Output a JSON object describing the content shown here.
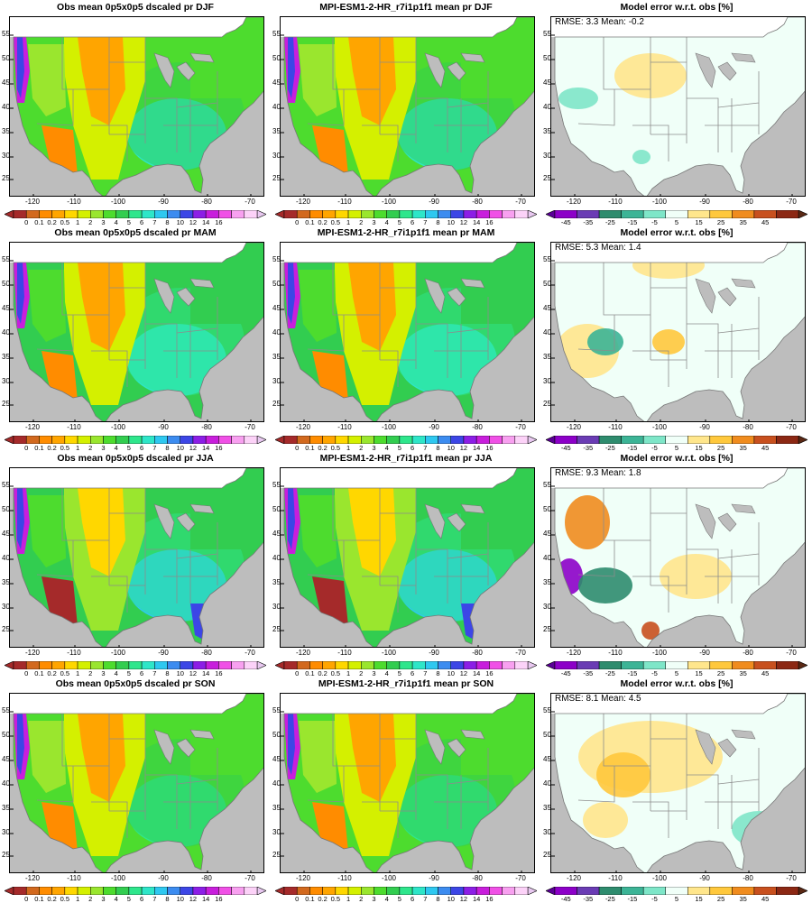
{
  "panels": [
    {
      "title": "Obs mean 0p5x0p5 dscaled pr DJF",
      "kind": "obs",
      "season": "DJF",
      "stats": ""
    },
    {
      "title": "MPI-ESM1-2-HR_r7i1p1f1 mean pr DJF",
      "kind": "model",
      "season": "DJF",
      "stats": ""
    },
    {
      "title": "Model error w.r.t. obs [%]",
      "kind": "err",
      "season": "DJF",
      "stats": "RMSE: 3.3  Mean: -0.2"
    },
    {
      "title": "Obs mean 0p5x0p5 dscaled pr MAM",
      "kind": "obs",
      "season": "MAM",
      "stats": ""
    },
    {
      "title": "MPI-ESM1-2-HR_r7i1p1f1 mean pr MAM",
      "kind": "model",
      "season": "MAM",
      "stats": ""
    },
    {
      "title": "Model error w.r.t. obs [%]",
      "kind": "err",
      "season": "MAM",
      "stats": "RMSE: 5.3  Mean: 1.4"
    },
    {
      "title": "Obs mean 0p5x0p5 dscaled pr JJA",
      "kind": "obs",
      "season": "JJA",
      "stats": ""
    },
    {
      "title": "MPI-ESM1-2-HR_r7i1p1f1 mean pr JJA",
      "kind": "model",
      "season": "JJA",
      "stats": ""
    },
    {
      "title": "Model error w.r.t. obs [%]",
      "kind": "err",
      "season": "JJA",
      "stats": "RMSE: 9.3  Mean: 1.8"
    },
    {
      "title": "Obs mean 0p5x0p5 dscaled pr SON",
      "kind": "obs",
      "season": "SON",
      "stats": ""
    },
    {
      "title": "MPI-ESM1-2-HR_r7i1p1f1 mean pr SON",
      "kind": "model",
      "season": "SON",
      "stats": ""
    },
    {
      "title": "Model error w.r.t. obs [%]",
      "kind": "err",
      "season": "SON",
      "stats": "RMSE: 8.1  Mean: 4.5"
    }
  ],
  "axes": {
    "lat_ticks": [
      "25",
      "30",
      "35",
      "40",
      "45",
      "50",
      "55"
    ],
    "lon_ticks": [
      "-120",
      "-110",
      "-100",
      "-90",
      "-80",
      "-70"
    ]
  },
  "colorbars": {
    "precip": {
      "labels": [
        "0",
        "0.1",
        "0.2",
        "0.5",
        "1",
        "2",
        "3",
        "4",
        "5",
        "6",
        "7",
        "8",
        "10",
        "12",
        "14",
        "16"
      ],
      "colors": [
        "#a52a2a",
        "#d2691e",
        "#ff8c00",
        "#ffa500",
        "#ffd700",
        "#d4f000",
        "#9ae62e",
        "#4ddc2e",
        "#32cd50",
        "#2ee68c",
        "#2ee6c8",
        "#2ec8f0",
        "#3c8cf0",
        "#3c46e6",
        "#8c1ee6",
        "#c81edc",
        "#f050e6",
        "#f8a0f0",
        "#fcd2f8"
      ],
      "under": "#a52a2a",
      "over": "#e8c8f0"
    },
    "error": {
      "labels": [
        "-45",
        "-35",
        "-25",
        "-15",
        "-5",
        "5",
        "15",
        "25",
        "35",
        "45"
      ],
      "colors": [
        "#8c00c8",
        "#6a3cb4",
        "#2e8c6e",
        "#3cb496",
        "#7ee6c8",
        "#f0fff8",
        "#ffe68c",
        "#ffc83c",
        "#f08c1e",
        "#c8501e",
        "#8c2814"
      ],
      "under": "#5a0096",
      "over": "#5a2814"
    }
  }
}
